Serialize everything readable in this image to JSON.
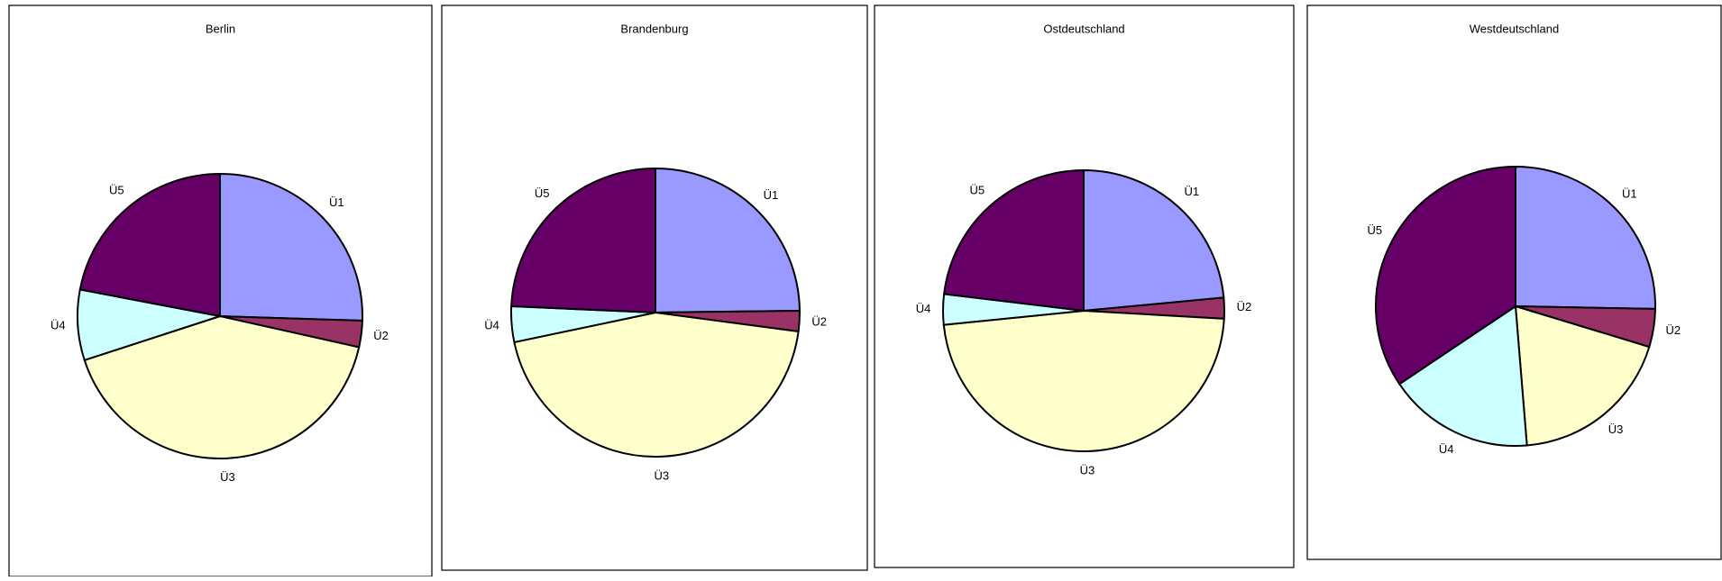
{
  "chart_data": [
    {
      "type": "pie",
      "title": "Berlin",
      "categories": [
        "Ü1",
        "Ü2",
        "Ü3",
        "Ü4",
        "Ü5"
      ],
      "values": [
        25.5,
        3,
        41.5,
        8,
        22
      ],
      "colors": [
        "#9999ff",
        "#993366",
        "#ffffcc",
        "#ccffff",
        "#660066"
      ]
    },
    {
      "type": "pie",
      "title": "Brandenburg",
      "categories": [
        "Ü1",
        "Ü2",
        "Ü3",
        "Ü4",
        "Ü5"
      ],
      "values": [
        24.8,
        2.3,
        44.6,
        4,
        24.3
      ],
      "colors": [
        "#9999ff",
        "#993366",
        "#ffffcc",
        "#ccffff",
        "#660066"
      ]
    },
    {
      "type": "pie",
      "title": "Ostdeutschland",
      "categories": [
        "Ü1",
        "Ü2",
        "Ü3",
        "Ü4",
        "Ü5"
      ],
      "values": [
        23.5,
        2.4,
        47.5,
        3.5,
        23.1
      ],
      "colors": [
        "#9999ff",
        "#993366",
        "#ffffcc",
        "#ccffff",
        "#660066"
      ]
    },
    {
      "type": "pie",
      "title": "Westdeutschland",
      "categories": [
        "Ü1",
        "Ü2",
        "Ü3",
        "Ü4",
        "Ü5"
      ],
      "values": [
        25.3,
        4.4,
        19,
        16.9,
        34.4
      ],
      "colors": [
        "#9999ff",
        "#993366",
        "#ffffcc",
        "#ccffff",
        "#660066"
      ]
    }
  ]
}
